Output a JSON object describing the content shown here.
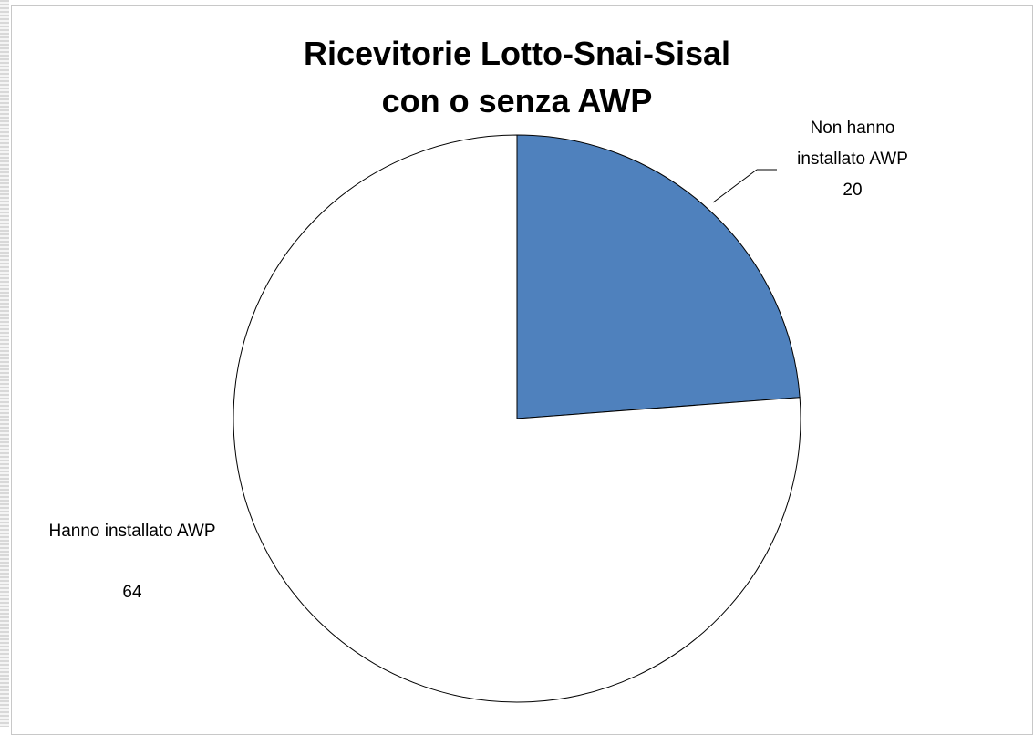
{
  "chart_data": {
    "type": "pie",
    "title": "Ricevitorie Lotto-Snai-Sisal",
    "subtitle": "con o senza AWP",
    "categories": [
      "Non hanno installato AWP",
      "Hanno installato AWP"
    ],
    "values": [
      20,
      64
    ],
    "colors": [
      "#4f81bd",
      "#ffffff"
    ]
  }
}
